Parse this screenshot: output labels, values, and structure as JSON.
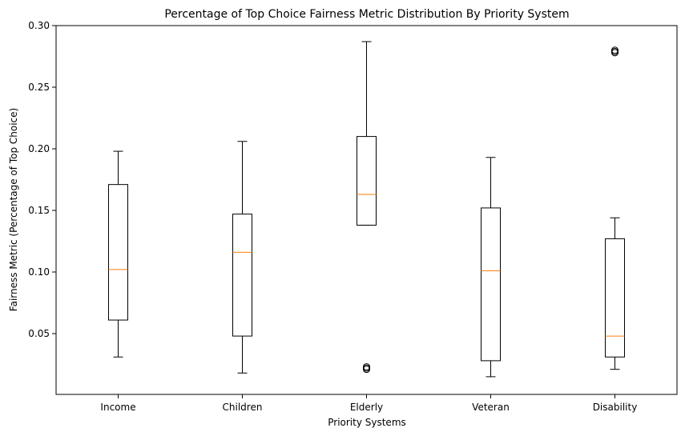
{
  "chart_data": {
    "type": "boxplot",
    "title": "Percentage of Top Choice Fairness Metric Distribution By Priority System",
    "xlabel": "Priority Systems",
    "ylabel": "Fairness Metric (Percentage of Top Choice)",
    "ylim": [
      0.0,
      0.3
    ],
    "yticks": [
      0.05,
      0.1,
      0.15,
      0.2,
      0.25,
      0.3
    ],
    "ytick_labels": [
      "0.05",
      "0.10",
      "0.15",
      "0.20",
      "0.25",
      "0.30"
    ],
    "categories": [
      "Income",
      "Children",
      "Elderly",
      "Veteran",
      "Disability"
    ],
    "boxes": [
      {
        "whisker_low": 0.031,
        "q1": 0.061,
        "median": 0.102,
        "q3": 0.171,
        "whisker_high": 0.198,
        "outliers": []
      },
      {
        "whisker_low": 0.018,
        "q1": 0.048,
        "median": 0.116,
        "q3": 0.147,
        "whisker_high": 0.206,
        "outliers": []
      },
      {
        "whisker_low": 0.138,
        "q1": 0.138,
        "median": 0.163,
        "q3": 0.21,
        "whisker_high": 0.287,
        "outliers": [
          0.021,
          0.022,
          0.023
        ]
      },
      {
        "whisker_low": 0.015,
        "q1": 0.028,
        "median": 0.101,
        "q3": 0.152,
        "whisker_high": 0.193,
        "outliers": []
      },
      {
        "whisker_low": 0.021,
        "q1": 0.031,
        "median": 0.048,
        "q3": 0.127,
        "whisker_high": 0.144,
        "outliers": [
          0.278,
          0.279,
          0.28
        ]
      }
    ],
    "grid": false,
    "colors": {
      "box": "#000000",
      "median": "#ff7f0e"
    }
  }
}
